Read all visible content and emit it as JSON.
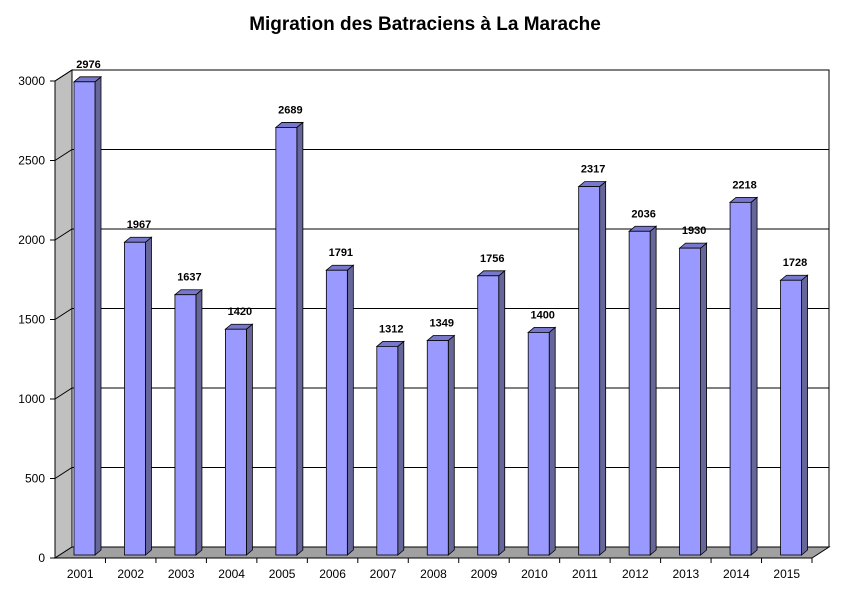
{
  "chart_data": {
    "type": "bar",
    "title": "Migration des Batraciens à La Marache",
    "xlabel": "",
    "ylabel": "",
    "categories": [
      "2001",
      "2002",
      "2003",
      "2004",
      "2005",
      "2006",
      "2007",
      "2008",
      "2009",
      "2010",
      "2011",
      "2012",
      "2013",
      "2014",
      "2015"
    ],
    "values": [
      2976,
      1967,
      1637,
      1420,
      2689,
      1791,
      1312,
      1349,
      1756,
      1400,
      2317,
      2036,
      1930,
      2218,
      1728
    ],
    "ylim": [
      0,
      3000
    ],
    "yticks": [
      0,
      500,
      1000,
      1500,
      2000,
      2500,
      3000
    ],
    "grid": true,
    "legend": "none",
    "style": "3d",
    "colors": {
      "bar_front": "#9999ff",
      "bar_side": "#666699",
      "wall": "#c0c0c0",
      "floor": "#a0a0a0"
    }
  }
}
